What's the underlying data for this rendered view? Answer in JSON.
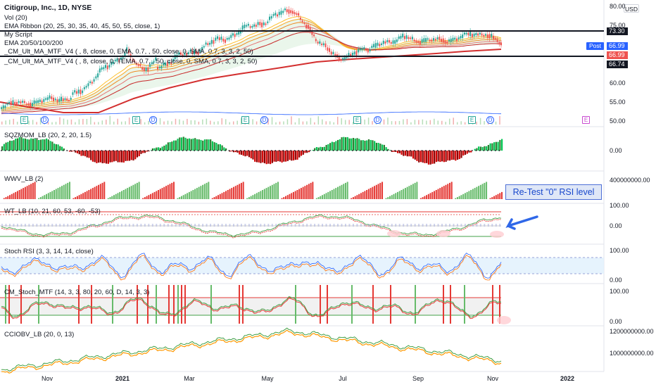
{
  "header": {
    "title": "Citigroup, Inc., 1D, NYSE",
    "indicators": [
      "Vol (20)",
      "EMA Ribbon (20, 25, 30, 35, 40, 45, 50, 55, close, 1)",
      "My Script",
      "EMA 20/50/100/200",
      "_CM_Ult_MA_MTF_V4 ( , 8, close, 0, EMA, 0.7, , 50, close, 0, SMA, 0.7, 3, 3, 2, 50)",
      "_CM_Ult_MA_MTF_V4 ( , 8, close, 0, TEMA, 0.7, , 50, close, 0, SMA, 0.7, 3, 3, 2, 50)"
    ]
  },
  "currency_button": "USD",
  "post_tag": "Post",
  "price_flags": [
    {
      "value": "73.30",
      "color": "#131722"
    },
    {
      "value": "66.99",
      "color": "#2962ff"
    },
    {
      "value": "66.99",
      "color": "#ef5350"
    },
    {
      "value": "66.74",
      "color": "#131722"
    }
  ],
  "main_axis_ticks": [
    "80.00",
    "75.00",
    "60.00",
    "55.00",
    "50.00"
  ],
  "panes": [
    {
      "label": "SQZMOM_LB (20, 2, 20, 1.5)",
      "ticks": [
        "0.00"
      ]
    },
    {
      "label": "WWV_LB (2)",
      "ticks": [
        "400000000.00"
      ]
    },
    {
      "label": "WT_LB (10, 21, 60, 53, -60, -53)",
      "ticks": [
        "100.00",
        "0.00"
      ]
    },
    {
      "label": "Stoch RSI (3, 3, 14, 14, close)",
      "ticks": [
        "100.00",
        "0.00"
      ]
    },
    {
      "label": "CM_Stoch_MTF (14, 3, 3, 80, 20, 60, D, 14, 3, 3)",
      "ticks": [
        "100.00",
        "0.00"
      ]
    },
    {
      "label": "CCIOBV_LB (20, 0, 13)",
      "ticks": [
        "1200000000.00",
        "1000000000.00"
      ]
    }
  ],
  "callout": "Re-Test \"0\" RSI level",
  "x_axis": [
    {
      "label": "Nov",
      "year": false
    },
    {
      "label": "2021",
      "year": true
    },
    {
      "label": "Mar",
      "year": false
    },
    {
      "label": "May",
      "year": false
    },
    {
      "label": "Jul",
      "year": false
    },
    {
      "label": "Sep",
      "year": false
    },
    {
      "label": "Nov",
      "year": false
    },
    {
      "label": "2022",
      "year": true
    }
  ],
  "events": [
    {
      "type": "e",
      "label": "E"
    },
    {
      "type": "d",
      "label": "D"
    },
    {
      "type": "e",
      "label": "E"
    },
    {
      "type": "d",
      "label": "D"
    },
    {
      "type": "e",
      "label": "E"
    },
    {
      "type": "d",
      "label": "D"
    },
    {
      "type": "e",
      "label": "E"
    },
    {
      "type": "d",
      "label": "D"
    },
    {
      "type": "e",
      "label": "E"
    },
    {
      "type": "d",
      "label": "D"
    },
    {
      "type": "e-future",
      "label": "E"
    }
  ],
  "colors": {
    "up": "#26a69a",
    "down": "#ef5350",
    "ema_red": "#d32f2f",
    "accent": "#2962ff"
  }
}
